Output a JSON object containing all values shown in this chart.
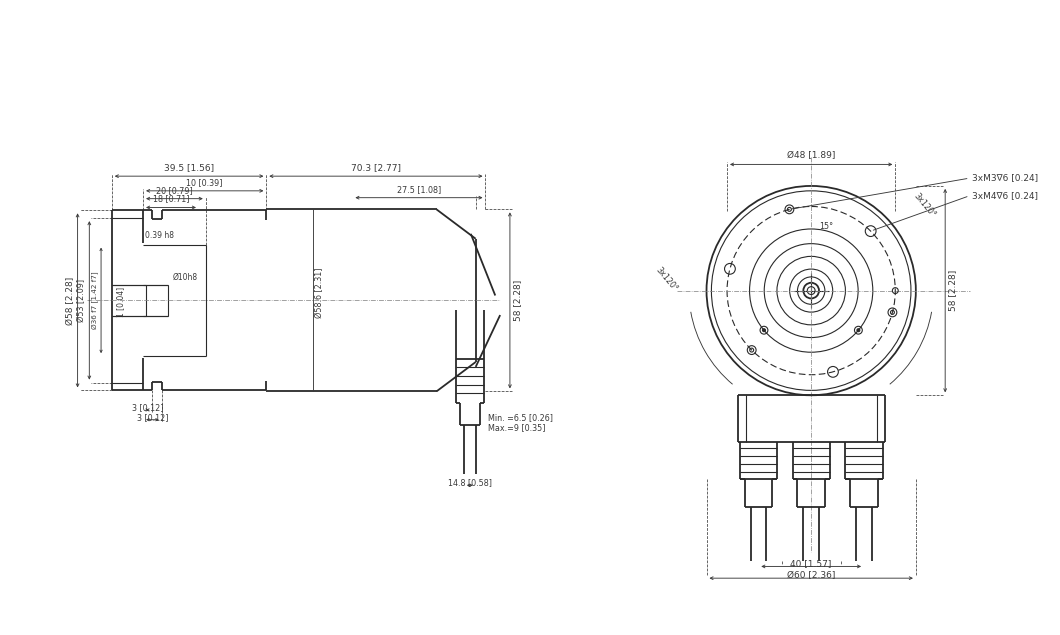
{
  "bg_color": "#ffffff",
  "lc": "#2a2a2a",
  "dc": "#3a3a3a",
  "clc": "#888888",
  "tlw": 0.8,
  "thlw": 1.3,
  "dlw": 0.65,
  "clw": 0.55,
  "fs": 6.5,
  "fs_sm": 5.8,
  "left_view": {
    "dim_39_5": "39.5 [1.56]",
    "dim_70_3": "70.3 [2.77]",
    "dim_10": "10 [0.39]",
    "dim_20": "20 [0.79]",
    "dim_18": "18 [0.71]",
    "dim_27_5": "27.5 [1.08]",
    "dim_58v": "58 [2.28]",
    "dim_phi58": "Ø58 [2.28]",
    "dim_phi53": "Ø53 [2.09]",
    "dim_phi36": "Ø36 f7 [1.42 f7]",
    "dim_phi10h8": "Ø10h8",
    "dim_0_39h8": "0.39 h8",
    "dim_1": "1 [0.04]",
    "dim_phi58_6": "Ø58.6 [2.31]",
    "dim_3a": "3 [0.12]",
    "dim_3b": "3 [0.12]",
    "dim_14_8": "14.8 [0.58]",
    "dim_min": "Min. =6.5 [0.26]",
    "dim_max": "Max.=9 [0.35]"
  },
  "right_view": {
    "dim_phi48": "Ø48 [1.89]",
    "dim_3xM3": "3xM3∇6 [0.24]",
    "dim_3xM4": "3xM4∇6 [0.24]",
    "dim_15deg": "15°",
    "dim_3x120_left": "3x120°",
    "dim_3x120_right": "3x120°",
    "dim_40": "40 [1.57]",
    "dim_phi60": "Ø60 [2.36]",
    "dim_58r": "58 [2.28]"
  }
}
